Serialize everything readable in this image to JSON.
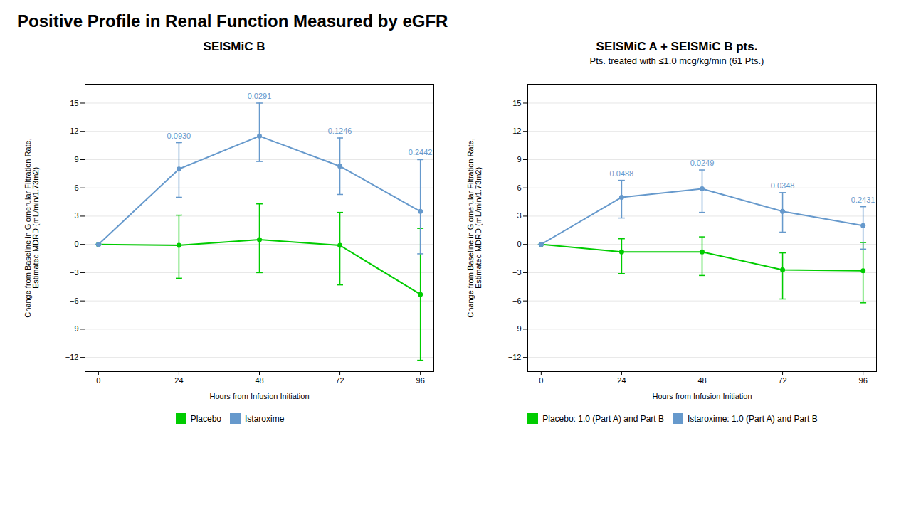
{
  "title": "Positive Profile in Renal Function Measured by eGFR",
  "chart_data": [
    {
      "type": "line",
      "title": "SEISMiC B",
      "xlabel": "Hours from Infusion Initiation",
      "ylabel": "Change from Baseline in Glomerular Filtration Rate,\nEstimated MDRD (mL/min/1.73m2)",
      "x": [
        0,
        24,
        48,
        72,
        96
      ],
      "xlim": [
        -4,
        100
      ],
      "xticks": [
        0,
        24,
        48,
        72,
        96
      ],
      "ylim": [
        -13.5,
        17
      ],
      "yticks": [
        -12,
        -9,
        -6,
        -3,
        0,
        3,
        6,
        9,
        12,
        15
      ],
      "grid": true,
      "legend": "bottom",
      "marker": "circle",
      "series": [
        {
          "name": "Placebo",
          "color": "#00cc00",
          "values": [
            0.0,
            -0.1,
            0.5,
            -0.1,
            -5.3
          ],
          "error_plus": [
            0.0,
            3.2,
            3.8,
            3.5,
            7.0
          ],
          "error_minus": [
            0.0,
            3.5,
            3.5,
            4.2,
            7.0
          ]
        },
        {
          "name": "Istaroxime",
          "color": "#6699cc",
          "values": [
            0.0,
            8.0,
            11.5,
            8.3,
            3.5
          ],
          "error_plus": [
            0.0,
            2.8,
            3.5,
            3.0,
            5.5
          ],
          "error_minus": [
            0.0,
            3.0,
            2.7,
            3.0,
            4.5
          ],
          "annotations": [
            null,
            "0.0930",
            "0.0291",
            "0.1246",
            "0.2442"
          ]
        }
      ]
    },
    {
      "type": "line",
      "title": "SEISMiC A + SEISMiC B pts.",
      "subtitle": "Pts. treated with ≤1.0 mcg/kg/min (61 Pts.)",
      "xlabel": "Hours from Infusion Initiation",
      "ylabel": "Change from Baseline in Glomerular Filtration Rate,\nEstimated MDRD (mL/min/1.73m2)",
      "x": [
        0,
        24,
        48,
        72,
        96
      ],
      "xlim": [
        -4,
        100
      ],
      "xticks": [
        0,
        24,
        48,
        72,
        96
      ],
      "ylim": [
        -13.5,
        17
      ],
      "yticks": [
        -12,
        -9,
        -6,
        -3,
        0,
        3,
        6,
        9,
        12,
        15
      ],
      "grid": true,
      "legend": "bottom",
      "marker": "circle",
      "series": [
        {
          "name": "Placebo: 1.0 (Part A) and Part B",
          "color": "#00cc00",
          "values": [
            0.0,
            -0.8,
            -0.8,
            -2.7,
            -2.8
          ],
          "error_plus": [
            0.0,
            1.4,
            1.6,
            1.8,
            3.0
          ],
          "error_minus": [
            0.0,
            2.3,
            2.5,
            3.1,
            3.4
          ]
        },
        {
          "name": "Istaroxime: 1.0 (Part A) and Part B",
          "color": "#6699cc",
          "values": [
            0.0,
            5.0,
            5.9,
            3.5,
            2.0
          ],
          "error_plus": [
            0.0,
            1.8,
            2.0,
            2.0,
            2.0
          ],
          "error_minus": [
            0.0,
            2.2,
            2.5,
            2.2,
            2.5
          ],
          "annotations": [
            null,
            "0.0488",
            "0.0249",
            "0.0348",
            "0.2431"
          ]
        }
      ]
    }
  ]
}
